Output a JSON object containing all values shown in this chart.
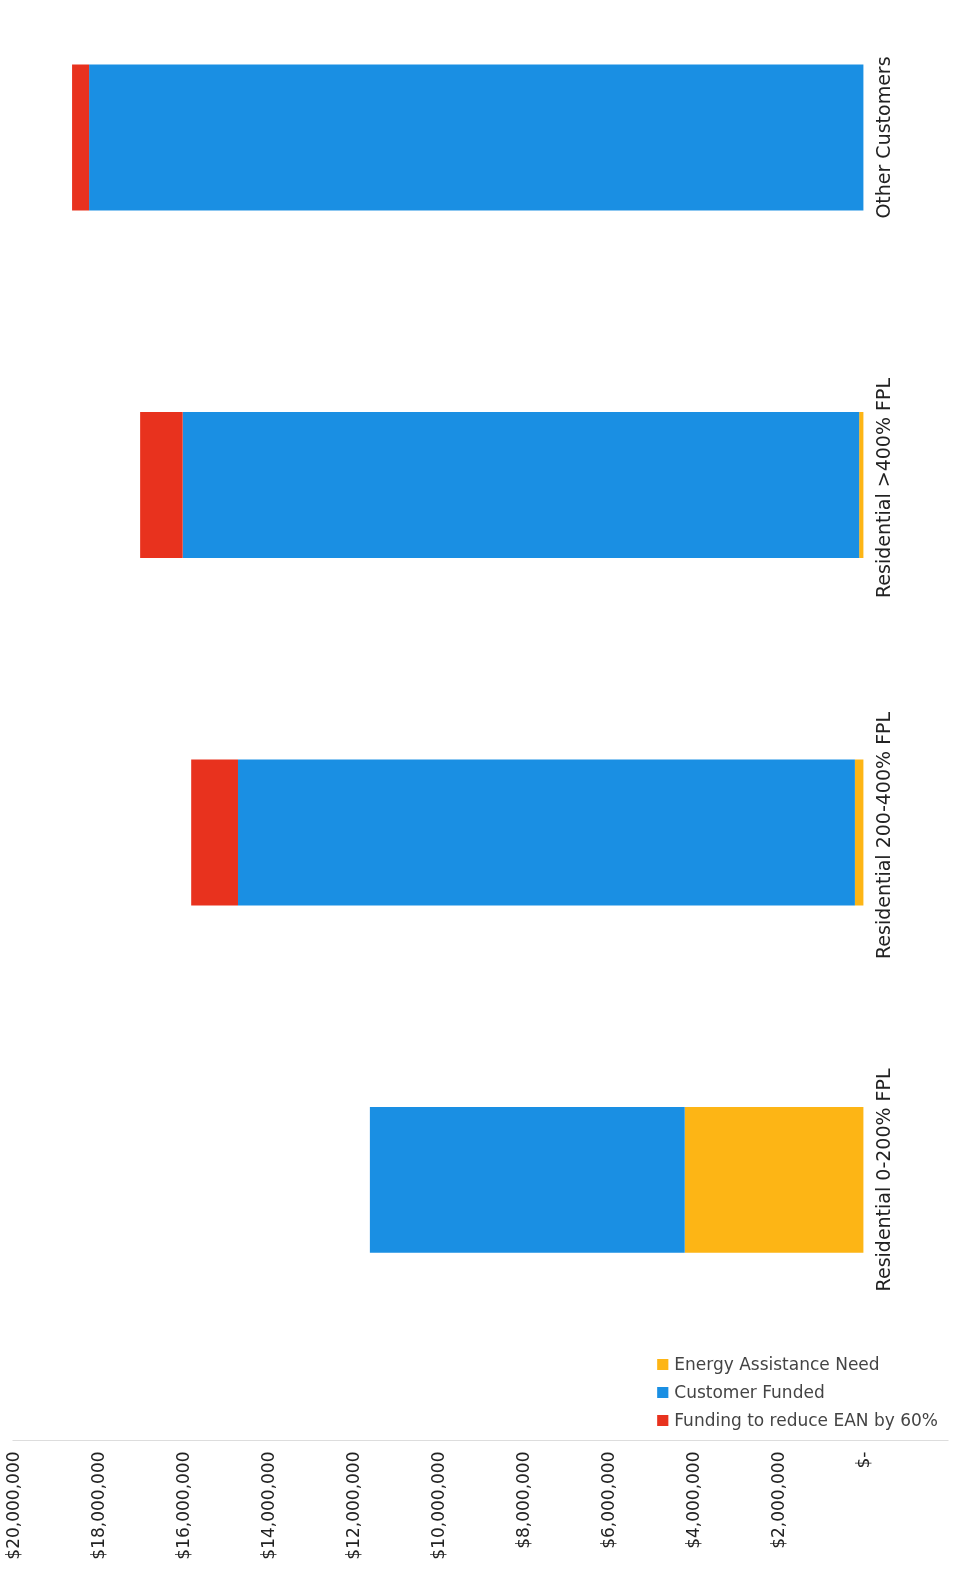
{
  "chart_data": {
    "type": "bar",
    "orientation": "horizontal",
    "stacked": true,
    "categories": [
      "Other Customers",
      "Residential  >400% FPL",
      "Residential  200-400% FPL",
      "Residential 0-200% FPL"
    ],
    "series": [
      {
        "name": "Energy Assistance Need",
        "color": "#fdb515",
        "values": [
          0,
          100000,
          200000,
          4200000
        ]
      },
      {
        "name": "Customer Funded",
        "color": "#1a8fe3",
        "values": [
          18200000,
          15900000,
          14500000,
          7400000
        ]
      },
      {
        "name": "Funding to reduce EAN by 60%",
        "color": "#e8321e",
        "values": [
          400000,
          1000000,
          1100000,
          0
        ]
      }
    ],
    "xlim": [
      20000000,
      0
    ],
    "xticks": [
      {
        "value": 20000000,
        "label": "$20,000,000"
      },
      {
        "value": 18000000,
        "label": "$18,000,000"
      },
      {
        "value": 16000000,
        "label": "$16,000,000"
      },
      {
        "value": 14000000,
        "label": "$14,000,000"
      },
      {
        "value": 12000000,
        "label": "$12,000,000"
      },
      {
        "value": 10000000,
        "label": "$10,000,000"
      },
      {
        "value": 8000000,
        "label": "$8,000,000"
      },
      {
        "value": 6000000,
        "label": "$6,000,000"
      },
      {
        "value": 4000000,
        "label": "$4,000,000"
      },
      {
        "value": 2000000,
        "label": "$2,000,000"
      },
      {
        "value": 0,
        "label": "$-"
      }
    ],
    "legend": "bottom right"
  }
}
